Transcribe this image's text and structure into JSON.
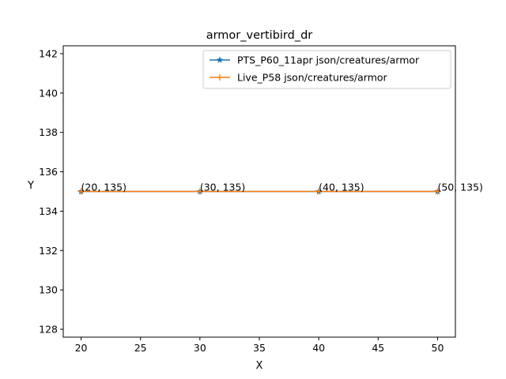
{
  "chart_data": {
    "type": "line",
    "title": "armor_vertibird_dr",
    "xlabel": "X",
    "ylabel": "Y",
    "xlim": [
      18.5,
      51.5
    ],
    "ylim": [
      127.6,
      142.4
    ],
    "xticks": [
      20,
      25,
      30,
      35,
      40,
      45,
      50
    ],
    "yticks": [
      128,
      130,
      132,
      134,
      136,
      138,
      140,
      142
    ],
    "legend_position": "top-right",
    "grid": false,
    "series": [
      {
        "name": "PTS_P60_11apr json/creatures/armor",
        "color": "#1f77b4",
        "marker": "star",
        "x": [
          20,
          30,
          40,
          50
        ],
        "y": [
          135,
          135,
          135,
          135
        ]
      },
      {
        "name": "Live_P58 json/creatures/armor",
        "color": "#ff7f0e",
        "marker": "plus",
        "x": [
          20,
          30,
          40,
          50
        ],
        "y": [
          135,
          135,
          135,
          135
        ]
      }
    ],
    "annotations": [
      "(20, 135)",
      "(30, 135)",
      "(40, 135)",
      "(50, 135)"
    ]
  }
}
